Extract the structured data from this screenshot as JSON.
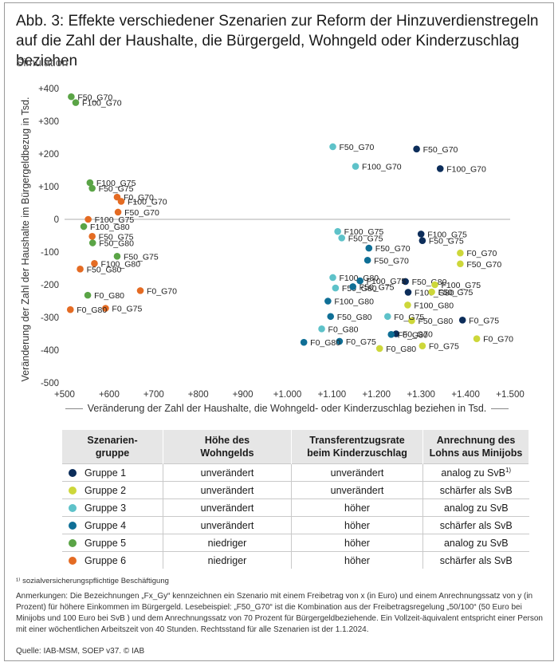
{
  "title": "Abb. 3: Effekte verschiedener Szenarien zur Reform der Hinzuverdienstregeln auf die Zahl der Haushalte, die Bürgergeld, Wohngeld oder Kinderzuschlag beziehen",
  "subtitle": "Simulation",
  "colors": {
    "g1": "#0c2d5a",
    "g2": "#cdd73a",
    "g3": "#5ec2c9",
    "g4": "#0f6f96",
    "g5": "#5aa446",
    "g6": "#e46b23"
  },
  "chart_data": {
    "type": "scatter",
    "xlabel": "Veränderung der Zahl der Haushalte, die Wohngeld- oder Kinderzuschlag beziehen in Tsd.",
    "ylabel": "Veränderung der Zahl der Haushalte im Bürgergeldbezug  in Tsd.",
    "xlim": [
      500,
      1500
    ],
    "ylim": [
      -500,
      400
    ],
    "x_ticks": [
      500,
      600,
      700,
      800,
      900,
      1000,
      1100,
      1200,
      1300,
      1400,
      1500
    ],
    "x_tick_labels": [
      "+500",
      "+600",
      "+700",
      "+800",
      "+900",
      "+1.000",
      "+1.100",
      "+1.200",
      "+1.300",
      "+1.400",
      "+1.500"
    ],
    "y_ticks": [
      400,
      300,
      200,
      100,
      0,
      -100,
      -200,
      -300,
      -400,
      -500
    ],
    "y_tick_labels": [
      "+400",
      "+300",
      "+200",
      "+100",
      "0",
      "-100",
      "-200",
      "-300",
      "-400",
      "-500"
    ],
    "zero_line": true,
    "series": [
      {
        "name": "Gruppe 1",
        "color": "#0c2d5a",
        "points": [
          {
            "label": "F50_G70",
            "x": 1290,
            "y": 215
          },
          {
            "label": "F100_G70",
            "x": 1343,
            "y": 155
          },
          {
            "label": "F100_G75",
            "x": 1300,
            "y": -45
          },
          {
            "label": "F50_G75",
            "x": 1303,
            "y": -65
          },
          {
            "label": "F50_G80",
            "x": 1265,
            "y": -190
          },
          {
            "label": "F100_G80",
            "x": 1271,
            "y": -223
          },
          {
            "label": "F0_G75",
            "x": 1393,
            "y": -308
          },
          {
            "label": "F0_G70",
            "x": 1244,
            "y": -350
          }
        ]
      },
      {
        "name": "Gruppe 2",
        "color": "#cdd73a",
        "points": [
          {
            "label": "F0_G70",
            "x": 1388,
            "y": -103
          },
          {
            "label": "F50_G70",
            "x": 1388,
            "y": -136
          },
          {
            "label": "F100_G75",
            "x": 1331,
            "y": -200
          },
          {
            "label": "F50_G75",
            "x": 1324,
            "y": -222
          },
          {
            "label": "F100_G80",
            "x": 1270,
            "y": -262
          },
          {
            "label": "F50_G80",
            "x": 1279,
            "y": -310
          },
          {
            "label": "F0_G80",
            "x": 1207,
            "y": -395
          },
          {
            "label": "F0_G75",
            "x": 1303,
            "y": -387
          },
          {
            "label": "F0_G70",
            "x": 1425,
            "y": -365
          }
        ]
      },
      {
        "name": "Gruppe 3",
        "color": "#5ec2c9",
        "points": [
          {
            "label": "F50_G70",
            "x": 1102,
            "y": 222
          },
          {
            "label": "F100_G70",
            "x": 1153,
            "y": 162
          },
          {
            "label": "F100_G75",
            "x": 1113,
            "y": -37
          },
          {
            "label": "F50_G75",
            "x": 1122,
            "y": -57
          },
          {
            "label": "F100_G80",
            "x": 1102,
            "y": -178
          },
          {
            "label": "F50_G80",
            "x": 1108,
            "y": -210
          },
          {
            "label": "F0_G75",
            "x": 1225,
            "y": -297
          },
          {
            "label": "F0_G80",
            "x": 1077,
            "y": -335
          }
        ]
      },
      {
        "name": "Gruppe 4",
        "color": "#0f6f96",
        "points": [
          {
            "label": "F50_G70",
            "x": 1183,
            "y": -88
          },
          {
            "label": "F50_G70",
            "x": 1180,
            "y": -125
          },
          {
            "label": "F100_G75",
            "x": 1163,
            "y": -188
          },
          {
            "label": "F50_G75",
            "x": 1147,
            "y": -206
          },
          {
            "label": "F100_G80",
            "x": 1091,
            "y": -250
          },
          {
            "label": "F50_G80",
            "x": 1097,
            "y": -297
          },
          {
            "label": "F0_G80",
            "x": 1233,
            "y": -352
          },
          {
            "label": "F0_G75",
            "x": 1117,
            "y": -373
          },
          {
            "label": "F0_G80",
            "x": 1037,
            "y": -376
          }
        ]
      },
      {
        "name": "Gruppe 5",
        "color": "#5aa446",
        "points": [
          {
            "label": "F50_G70",
            "x": 515,
            "y": 375
          },
          {
            "label": "F100_G70",
            "x": 525,
            "y": 357
          },
          {
            "label": "F100_G75",
            "x": 557,
            "y": 112
          },
          {
            "label": "F50_G75",
            "x": 562,
            "y": 95
          },
          {
            "label": "F100_G80",
            "x": 543,
            "y": -22
          },
          {
            "label": "F50_G80",
            "x": 563,
            "y": -72
          },
          {
            "label": "F50_G75",
            "x": 618,
            "y": -113
          },
          {
            "label": "F0_G80",
            "x": 552,
            "y": -232
          }
        ]
      },
      {
        "name": "Gruppe 6",
        "color": "#e46b23",
        "points": [
          {
            "label": "F0_G70",
            "x": 618,
            "y": 68
          },
          {
            "label": "F100_G70",
            "x": 627,
            "y": 55
          },
          {
            "label": "F50_G70",
            "x": 620,
            "y": 22
          },
          {
            "label": "F100_G75",
            "x": 553,
            "y": 0
          },
          {
            "label": "F50_G75",
            "x": 562,
            "y": -52
          },
          {
            "label": "F100_G80",
            "x": 567,
            "y": -135
          },
          {
            "label": "F50_G80",
            "x": 535,
            "y": -152
          },
          {
            "label": "F0_G70",
            "x": 670,
            "y": -218
          },
          {
            "label": "F0_G75",
            "x": 592,
            "y": -272
          },
          {
            "label": "F0_G80",
            "x": 513,
            "y": -276
          }
        ]
      }
    ]
  },
  "legend_table": {
    "headers": [
      "Szenarien-\ngruppe",
      "Höhe des\nWohngelds",
      "Transferentzugsrate\nbeim Kinderzuschlag",
      "Anrechnung des\nLohns aus Minijobs"
    ],
    "rows": [
      {
        "group": "Gruppe 1",
        "color": "#0c2d5a",
        "wohngeld": "unverändert",
        "kiz": "unverändert",
        "minijob": "analog zu SvB",
        "sup": "1)"
      },
      {
        "group": "Gruppe 2",
        "color": "#cdd73a",
        "wohngeld": "unverändert",
        "kiz": "unverändert",
        "minijob": "schärfer als SvB",
        "sup": ""
      },
      {
        "group": "Gruppe 3",
        "color": "#5ec2c9",
        "wohngeld": "unverändert",
        "kiz": "höher",
        "minijob": "analog zu SvB",
        "sup": ""
      },
      {
        "group": "Gruppe 4",
        "color": "#0f6f96",
        "wohngeld": "unverändert",
        "kiz": "höher",
        "minijob": "schärfer als SvB",
        "sup": ""
      },
      {
        "group": "Gruppe 5",
        "color": "#5aa446",
        "wohngeld": "niedriger",
        "kiz": "höher",
        "minijob": "analog zu SvB",
        "sup": ""
      },
      {
        "group": "Gruppe 6",
        "color": "#e46b23",
        "wohngeld": "niedriger",
        "kiz": "höher",
        "minijob": "schärfer als SvB",
        "sup": ""
      }
    ]
  },
  "footnote": "¹⁾ sozialversicherungspflichtige Beschäftigung",
  "notes": "Anmerkungen: Die Bezeichnungen „Fx_Gy“ kennzeichnen ein Szenario mit einem Freibetrag von x (in Euro) und einem Anrechnungssatz von y (in Prozent) für höhere Einkommen im Bürgergeld. Lesebeispiel: „F50_G70“ ist die Kombination aus der Freibetragsregelung „50/100“ (50 Euro bei Minijobs und 100 Euro bei SvB ) und dem Anrechnungssatz von 70 Prozent für Bürgergeldbeziehende. Ein Vollzeit-äquivalent entspricht einer Person mit einer wöchentlichen Arbeitszeit von 40 Stunden. Rechtsstand für alle Szenarien ist der 1.1.2024.",
  "source": "Quelle: IAB-MSM, SOEP v37. © IAB"
}
